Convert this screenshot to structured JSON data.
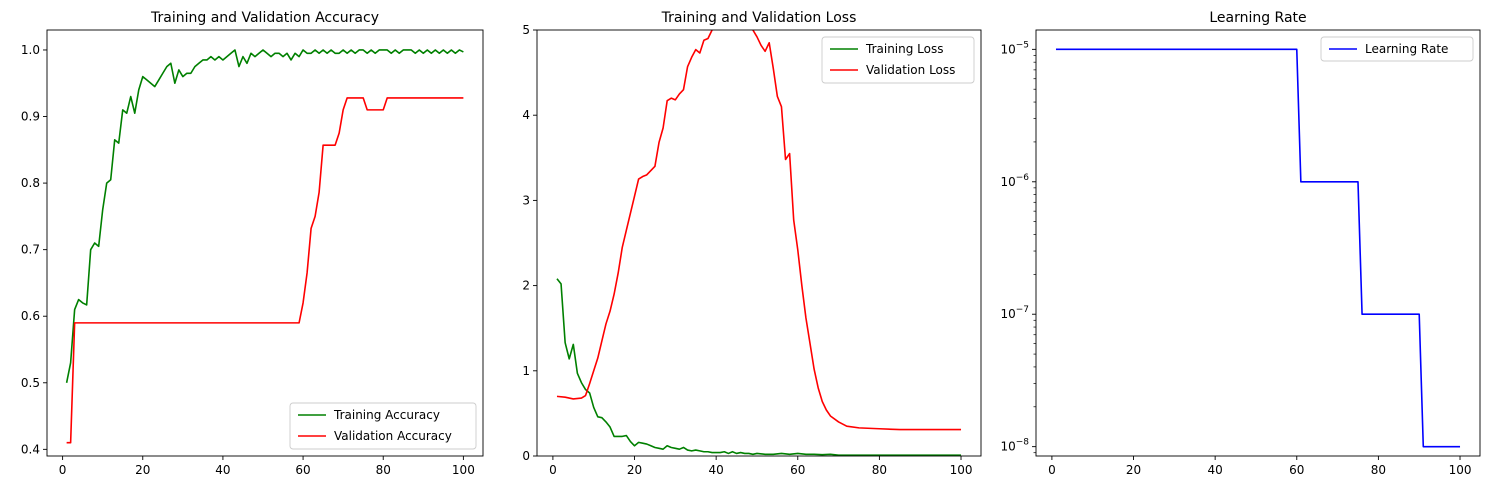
{
  "colors": {
    "training": "#008000",
    "validation": "#ff0000",
    "lr": "#0000ff"
  },
  "chart_data": [
    {
      "type": "line",
      "title": "Training and Validation Accuracy",
      "xlabel": "",
      "ylabel": "",
      "xlim": [
        1,
        100
      ],
      "ylim": [
        0.39,
        1.03
      ],
      "xticks": [
        0,
        20,
        40,
        60,
        80,
        100
      ],
      "xtick_labels": [
        "0",
        "20",
        "40",
        "60",
        "80",
        "100"
      ],
      "yticks": [
        0.4,
        0.5,
        0.6,
        0.7,
        0.8,
        0.9,
        1.0
      ],
      "ytick_labels": [
        "0.4",
        "0.5",
        "0.6",
        "0.7",
        "0.8",
        "0.9",
        "1.0"
      ],
      "legend": "lower right",
      "grid": false,
      "series": [
        {
          "name": "Training Accuracy",
          "color": "#008000",
          "x": [
            1,
            2,
            3,
            4,
            5,
            6,
            7,
            8,
            9,
            10,
            11,
            12,
            13,
            14,
            15,
            16,
            17,
            18,
            19,
            20,
            21,
            22,
            23,
            24,
            25,
            26,
            27,
            28,
            29,
            30,
            31,
            32,
            33,
            34,
            35,
            36,
            37,
            38,
            39,
            40,
            41,
            42,
            43,
            44,
            45,
            46,
            47,
            48,
            49,
            50,
            51,
            52,
            53,
            54,
            55,
            56,
            57,
            58,
            59,
            60,
            61,
            62,
            63,
            64,
            65,
            66,
            67,
            68,
            69,
            70,
            71,
            72,
            73,
            74,
            75,
            76,
            77,
            78,
            79,
            80,
            81,
            82,
            83,
            84,
            85,
            86,
            87,
            88,
            89,
            90,
            91,
            92,
            93,
            94,
            95,
            96,
            97,
            98,
            99,
            100
          ],
          "values": [
            0.5,
            0.53,
            0.61,
            0.625,
            0.62,
            0.617,
            0.7,
            0.71,
            0.705,
            0.76,
            0.8,
            0.805,
            0.865,
            0.86,
            0.91,
            0.905,
            0.93,
            0.905,
            0.94,
            0.96,
            0.955,
            0.95,
            0.945,
            0.955,
            0.965,
            0.975,
            0.98,
            0.95,
            0.97,
            0.96,
            0.965,
            0.965,
            0.975,
            0.98,
            0.985,
            0.985,
            0.99,
            0.985,
            0.99,
            0.985,
            0.99,
            0.995,
            1.0,
            0.975,
            0.99,
            0.98,
            0.995,
            0.99,
            0.995,
            1.0,
            0.995,
            0.99,
            0.995,
            0.995,
            0.99,
            0.995,
            0.985,
            0.995,
            0.99,
            1.0,
            0.995,
            0.995,
            1.0,
            0.995,
            1.0,
            0.995,
            1.0,
            0.995,
            0.995,
            1.0,
            0.995,
            1.0,
            0.995,
            1.0,
            1.0,
            0.995,
            1.0,
            0.995,
            1.0,
            1.0,
            1.0,
            0.995,
            1.0,
            0.995,
            1.0,
            1.0,
            1.0,
            0.995,
            1.0,
            0.995,
            1.0,
            0.995,
            1.0,
            0.995,
            1.0,
            0.995,
            1.0,
            0.995,
            1.0,
            0.997
          ]
        },
        {
          "name": "Validation Accuracy",
          "color": "#ff0000",
          "x": [
            1,
            2,
            3,
            4,
            5,
            10,
            20,
            30,
            40,
            50,
            58,
            59,
            60,
            61,
            62,
            63,
            64,
            65,
            66,
            67,
            68,
            69,
            70,
            71,
            72,
            73,
            74,
            75,
            76,
            77,
            78,
            79,
            80,
            81,
            82,
            90,
            100
          ],
          "values": [
            0.41,
            0.41,
            0.59,
            0.59,
            0.59,
            0.59,
            0.59,
            0.59,
            0.59,
            0.59,
            0.59,
            0.59,
            0.62,
            0.665,
            0.732,
            0.75,
            0.786,
            0.857,
            0.857,
            0.857,
            0.857,
            0.875,
            0.91,
            0.928,
            0.928,
            0.928,
            0.928,
            0.928,
            0.91,
            0.91,
            0.91,
            0.91,
            0.91,
            0.928,
            0.928,
            0.928,
            0.928
          ]
        }
      ]
    },
    {
      "type": "line",
      "title": "Training and Validation Loss",
      "xlabel": "",
      "ylabel": "",
      "xlim": [
        1,
        100
      ],
      "ylim": [
        0,
        5
      ],
      "xticks": [
        0,
        20,
        40,
        60,
        80,
        100
      ],
      "xtick_labels": [
        "0",
        "20",
        "40",
        "60",
        "80",
        "100"
      ],
      "yticks": [
        0,
        1,
        2,
        3,
        4,
        5
      ],
      "ytick_labels": [
        "0",
        "1",
        "2",
        "3",
        "4",
        "5"
      ],
      "legend": "upper right",
      "grid": false,
      "series": [
        {
          "name": "Training Loss",
          "color": "#008000",
          "x": [
            1,
            2,
            3,
            4,
            5,
            6,
            7,
            8,
            9,
            10,
            11,
            12,
            13,
            14,
            15,
            16,
            17,
            18,
            19,
            20,
            21,
            22,
            23,
            24,
            25,
            26,
            27,
            28,
            29,
            30,
            31,
            32,
            33,
            34,
            35,
            36,
            37,
            38,
            39,
            40,
            41,
            42,
            43,
            44,
            45,
            46,
            47,
            48,
            49,
            50,
            52,
            54,
            56,
            58,
            60,
            62,
            64,
            66,
            68,
            70,
            75,
            80,
            85,
            90,
            95,
            100
          ],
          "values": [
            2.08,
            2.02,
            1.33,
            1.14,
            1.31,
            0.97,
            0.86,
            0.78,
            0.74,
            0.57,
            0.46,
            0.45,
            0.4,
            0.34,
            0.23,
            0.23,
            0.23,
            0.24,
            0.17,
            0.12,
            0.16,
            0.15,
            0.14,
            0.12,
            0.1,
            0.09,
            0.08,
            0.12,
            0.1,
            0.09,
            0.08,
            0.1,
            0.07,
            0.06,
            0.07,
            0.06,
            0.05,
            0.05,
            0.04,
            0.04,
            0.04,
            0.05,
            0.03,
            0.05,
            0.03,
            0.04,
            0.03,
            0.03,
            0.02,
            0.03,
            0.02,
            0.02,
            0.03,
            0.02,
            0.03,
            0.02,
            0.02,
            0.015,
            0.02,
            0.01,
            0.01,
            0.01,
            0.01,
            0.01,
            0.01,
            0.01
          ]
        },
        {
          "name": "Validation Loss",
          "color": "#ff0000",
          "x": [
            1,
            3,
            5,
            7,
            8,
            9,
            10,
            11,
            12,
            13,
            14,
            15,
            16,
            17,
            18,
            19,
            20,
            21,
            22,
            23,
            24,
            25,
            26,
            27,
            28,
            29,
            30,
            31,
            32,
            33,
            34,
            35,
            36,
            37,
            38,
            39,
            40,
            41,
            42,
            43,
            44,
            45,
            46,
            47,
            48,
            49,
            50,
            51,
            52,
            53,
            54,
            55,
            56,
            57,
            58,
            59,
            60,
            61,
            62,
            63,
            64,
            65,
            66,
            67,
            68,
            70,
            72,
            75,
            80,
            85,
            90,
            95,
            100
          ],
          "values": [
            0.7,
            0.69,
            0.67,
            0.68,
            0.71,
            0.85,
            1.0,
            1.15,
            1.35,
            1.55,
            1.7,
            1.9,
            2.15,
            2.45,
            2.65,
            2.85,
            3.05,
            3.25,
            3.28,
            3.3,
            3.35,
            3.4,
            3.68,
            3.85,
            4.17,
            4.2,
            4.18,
            4.25,
            4.3,
            4.57,
            4.68,
            4.77,
            4.73,
            4.88,
            4.9,
            5.0,
            5.1,
            5.2,
            5.3,
            5.4,
            5.4,
            5.3,
            5.2,
            5.1,
            5.05,
            5.0,
            4.92,
            4.82,
            4.75,
            4.85,
            4.55,
            4.22,
            4.1,
            3.48,
            3.55,
            2.77,
            2.42,
            2.0,
            1.62,
            1.32,
            1.02,
            0.8,
            0.64,
            0.54,
            0.47,
            0.4,
            0.35,
            0.33,
            0.32,
            0.31,
            0.31,
            0.31,
            0.31
          ]
        }
      ]
    },
    {
      "type": "line",
      "title": "Learning Rate",
      "xlabel": "",
      "ylabel": "",
      "xlim": [
        1,
        100
      ],
      "yscale": "log",
      "ylim": [
        8.5e-09,
        1.4e-05
      ],
      "xticks": [
        0,
        20,
        40,
        60,
        80,
        100
      ],
      "xtick_labels": [
        "0",
        "20",
        "40",
        "60",
        "80",
        "100"
      ],
      "yticks": [
        1e-08,
        1e-07,
        1e-06,
        1e-05
      ],
      "ytick_bases": [
        "10",
        "10",
        "10",
        "10"
      ],
      "ytick_exponents": [
        "−8",
        "−7",
        "−6",
        "−5"
      ],
      "legend": "upper right",
      "grid": false,
      "series": [
        {
          "name": "Learning Rate",
          "color": "#0000ff",
          "x": [
            1,
            60,
            61,
            75,
            76,
            90,
            91,
            100
          ],
          "values": [
            1e-05,
            1e-05,
            1e-06,
            1e-06,
            1e-07,
            1e-07,
            1e-08,
            1e-08
          ]
        }
      ]
    }
  ]
}
